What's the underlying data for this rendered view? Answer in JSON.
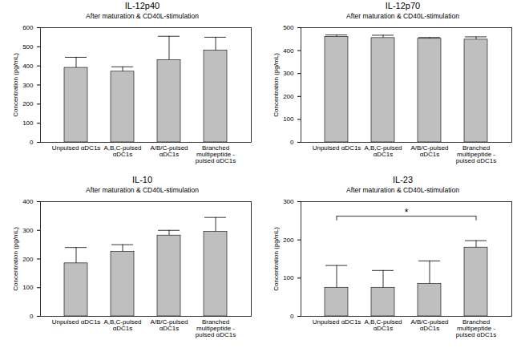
{
  "chart_data": [
    {
      "type": "bar",
      "title": "IL-12p40",
      "subtitle": "After maturation & CD40L-stimulation",
      "y_label": "Concentration (pg/mL)",
      "categories": [
        "Unpulsed αDC1s",
        "A,B,C-pulsed αDC1s",
        "A/B/C-pulsed αDC1s",
        "Branched multipeptide -pulsed αDC1s"
      ],
      "values": [
        390,
        370,
        430,
        480
      ],
      "errors": [
        55,
        25,
        125,
        70
      ],
      "color": "#bfbfbf",
      "ylim": [
        0,
        600
      ],
      "yticks": [
        0,
        100,
        200,
        300,
        400,
        500,
        600
      ],
      "grid": false
    },
    {
      "type": "bar",
      "title": "IL-12p70",
      "subtitle": "After maturation & CD40L-stimulation",
      "y_label": "Concentration (pg/mL)",
      "categories": [
        "Unpulsed αDC1s",
        "A,B,C-pulsed αDC1s",
        "A/B/C-pulsed αDC1s",
        "Branched multipeptide -pulsed αDC1s"
      ],
      "values": [
        460,
        455,
        452,
        448
      ],
      "errors": [
        8,
        12,
        5,
        12
      ],
      "color": "#bfbfbf",
      "ylim": [
        0,
        500
      ],
      "yticks": [
        0,
        100,
        200,
        300,
        400,
        500
      ],
      "grid": false
    },
    {
      "type": "bar",
      "title": "IL-10",
      "subtitle": "After maturation & CD40L-stimulation",
      "y_label": "Concentration (pg/mL)",
      "categories": [
        "Unpulsed αDC1s",
        "A,B,C-pulsed αDC1s",
        "A/B/C-pulsed αDC1s",
        "Branched multipeptide -pulsed αDC1s"
      ],
      "values": [
        185,
        225,
        282,
        295
      ],
      "errors": [
        55,
        25,
        18,
        50
      ],
      "color": "#bfbfbf",
      "ylim": [
        0,
        400
      ],
      "yticks": [
        0,
        100,
        200,
        300,
        400
      ],
      "grid": false
    },
    {
      "type": "bar",
      "title": "IL-23",
      "subtitle": "After maturation & CD40L-stimulation",
      "y_label": "Concentration (pg/mL)",
      "categories": [
        "Unpulsed αDC1s",
        "A,B,C-pulsed αDC1s",
        "A/B/C-pulsed αDC1s",
        "Branched multipeptide -pulsed αDC1s"
      ],
      "values": [
        75,
        75,
        85,
        180
      ],
      "errors": [
        58,
        45,
        60,
        18
      ],
      "color": "#bfbfbf",
      "ylim": [
        0,
        300
      ],
      "yticks": [
        0,
        100,
        200,
        300
      ],
      "grid": false,
      "annotations": [
        {
          "text": "*",
          "between": [
            "Unpulsed αDC1s",
            "Branched multipeptide -pulsed αDC1s"
          ],
          "y": 262
        }
      ]
    }
  ]
}
